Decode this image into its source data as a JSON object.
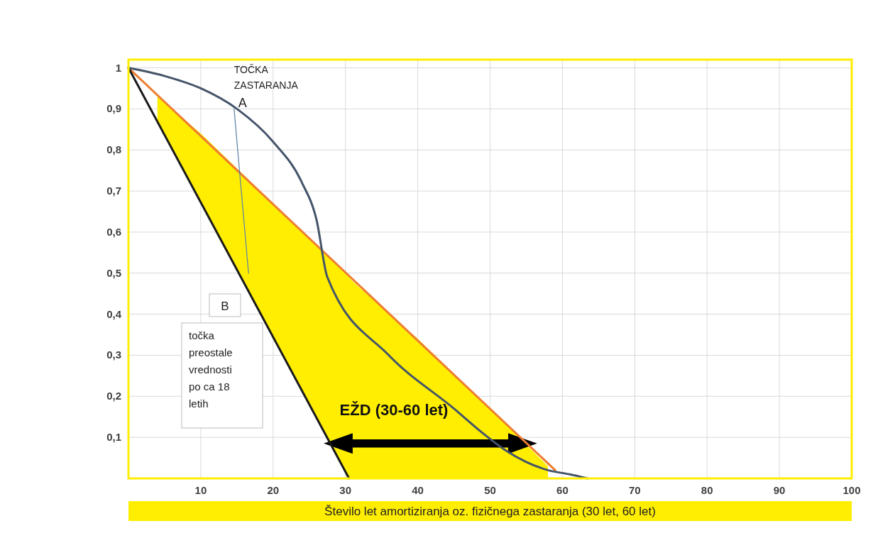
{
  "chart_data": {
    "type": "line",
    "xlabel": "Število let amortiziranja oz. fizičnega zastaranja (30 let, 60 let)",
    "xlim": [
      0,
      100
    ],
    "xticks": [
      10,
      20,
      30,
      40,
      50,
      60,
      70,
      80,
      90,
      100
    ],
    "ylim": [
      0,
      1.02
    ],
    "yticks": [
      {
        "value": 0.1,
        "label": "0,1"
      },
      {
        "value": 0.2,
        "label": "0,2"
      },
      {
        "value": 0.3,
        "label": "0,3"
      },
      {
        "value": 0.4,
        "label": "0,4"
      },
      {
        "value": 0.5,
        "label": "0,5"
      },
      {
        "value": 0.6,
        "label": "0,6"
      },
      {
        "value": 0.7,
        "label": "0,7"
      },
      {
        "value": 0.8,
        "label": "0,8"
      },
      {
        "value": 0.9,
        "label": "0,9"
      },
      {
        "value": 1,
        "label": "1"
      }
    ],
    "grid": true,
    "series": [
      {
        "type": "area",
        "color": "#ffee00",
        "x": [
          4,
          10,
          20,
          30,
          31,
          40,
          50,
          58
        ],
        "values": [
          0.93,
          0.84,
          0.67,
          0.5,
          0.48,
          0.34,
          0.17,
          0.03
        ]
      },
      {
        "color": "#ed7d31",
        "x": [
          0,
          59
        ],
        "values": [
          1,
          0.02
        ]
      },
      {
        "color": "#1a1a1a",
        "x": [
          0,
          30.5
        ],
        "values": [
          1,
          0
        ]
      },
      {
        "color": "#44546a",
        "x": [
          0,
          5,
          10,
          15,
          20,
          24,
          26,
          27.5,
          36,
          45,
          49,
          52,
          55,
          58,
          61,
          63.5
        ],
        "values": [
          1,
          0.98,
          0.95,
          0.9,
          0.82,
          0.72,
          0.63,
          0.49,
          0.3,
          0.17,
          0.11,
          0.07,
          0.04,
          0.02,
          0.01,
          0
        ]
      },
      {
        "color": "#5b7fa6",
        "x": [
          14.6,
          16.6
        ],
        "values": [
          0.9,
          0.5
        ]
      }
    ],
    "annotations": [
      {
        "text": "TOČKA ZASTARANJA A",
        "x": 14.6,
        "y": 0.9
      },
      "B",
      "točka preostale vrednosti po ca 18 letih",
      "EŽD (30-60 let)"
    ]
  }
}
